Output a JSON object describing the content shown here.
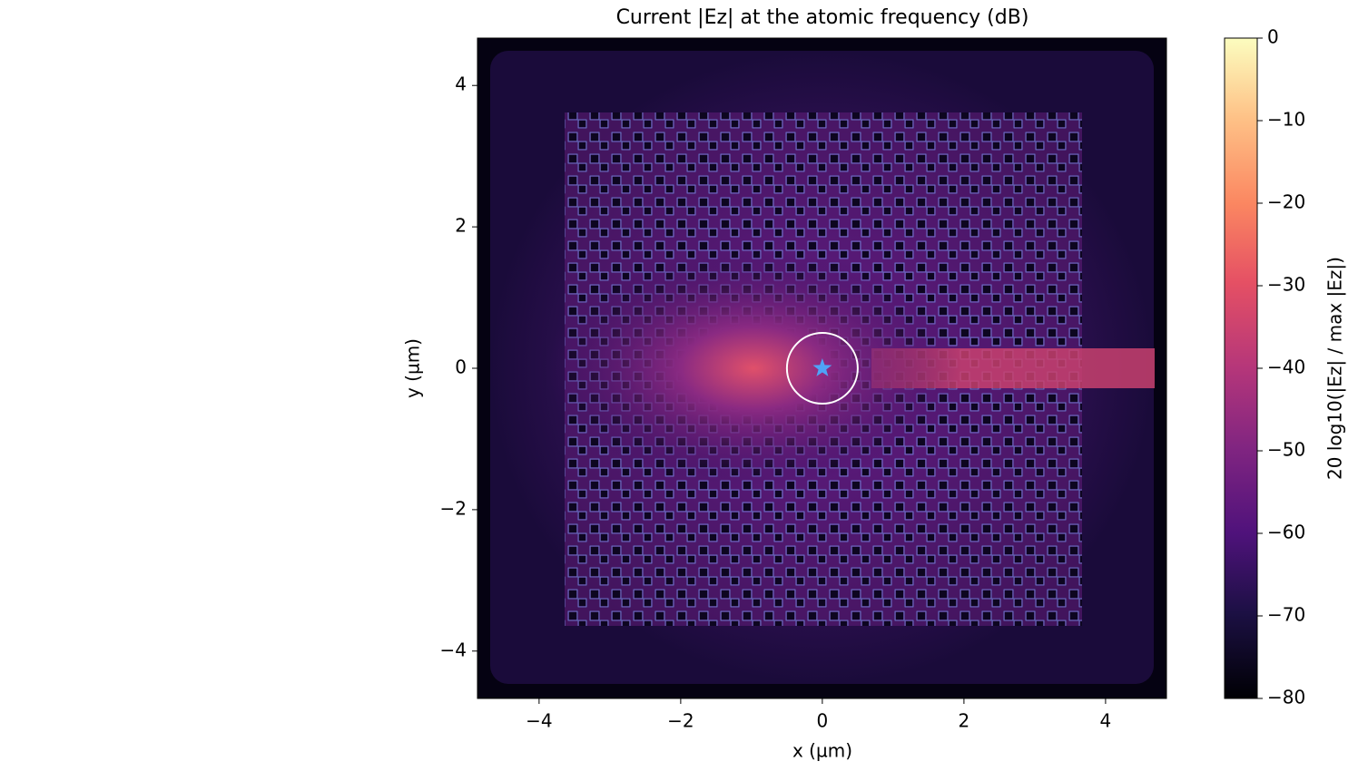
{
  "chart_data": {
    "type": "heatmap",
    "title": "Current |Ez| at the atomic frequency (dB)",
    "xlabel": "x (µm)",
    "ylabel": "y (µm)",
    "xlim": [
      -4.87,
      4.86
    ],
    "ylim": [
      -4.67,
      4.67
    ],
    "xticks": [
      {
        "value": -4,
        "label": "−4"
      },
      {
        "value": -2,
        "label": "−2"
      },
      0,
      2,
      4
    ],
    "yticks": [
      {
        "value": -4,
        "label": "−4"
      },
      {
        "value": -2,
        "label": "−2"
      },
      0,
      2,
      4
    ],
    "colorbar": {
      "label": "20 log10(|Ez| / max |Ez|)",
      "clim": [
        -80,
        0
      ],
      "ticks": [
        0,
        {
          "value": -10,
          "label": "−10"
        },
        {
          "value": -20,
          "label": "−20"
        },
        {
          "value": -30,
          "label": "−30"
        },
        {
          "value": -40,
          "label": "−40"
        },
        {
          "value": -50,
          "label": "−50"
        },
        {
          "value": -60,
          "label": "−60"
        },
        {
          "value": -70,
          "label": "−70"
        },
        {
          "value": -80,
          "label": "−80"
        }
      ]
    },
    "circle": {
      "x": 0,
      "y": 0,
      "r": 0.5,
      "color": "#ffffff"
    },
    "marker": {
      "x": 0,
      "y": 0,
      "color": "#4fa3f7"
    }
  }
}
